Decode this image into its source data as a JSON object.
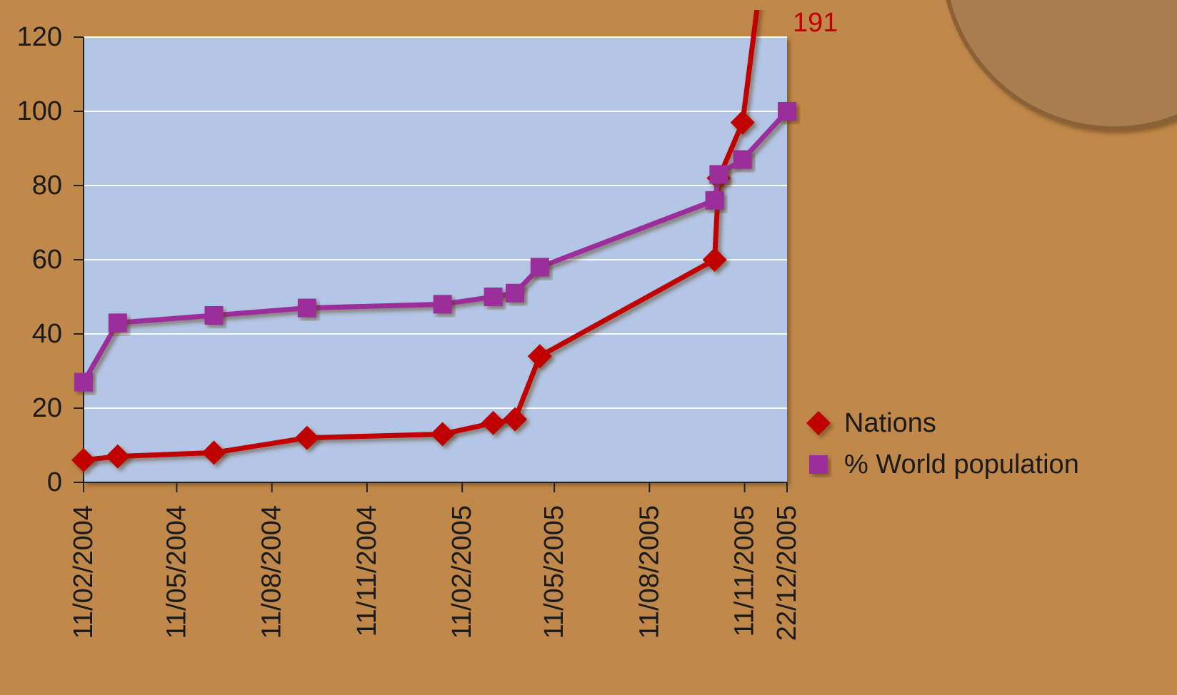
{
  "chart_data": {
    "type": "line",
    "x": [
      "11/02/2004",
      "15/03/2004",
      "16/06/2004",
      "14/09/2004",
      "23/01/2005",
      "13/03/2005",
      "03/04/2005",
      "27/04/2005",
      "13/10/2005",
      "17/10/2005",
      "09/11/2005",
      "22/12/2005"
    ],
    "series": [
      {
        "name": "Nations",
        "color": "#c00000",
        "marker": "diamond",
        "values": [
          6,
          7,
          8,
          12,
          13,
          16,
          17,
          34,
          60,
          82,
          97,
          191
        ]
      },
      {
        "name": "% World population",
        "color": "#9c2e9c",
        "marker": "square",
        "values": [
          27,
          43,
          45,
          47,
          48,
          50,
          51,
          58,
          76,
          83,
          87,
          100
        ]
      }
    ],
    "xlim": [
      "11/02/2004",
      "22/12/2005"
    ],
    "xticks": [
      "11/02/2004",
      "11/05/2004",
      "11/08/2004",
      "11/11/2004",
      "11/02/2005",
      "11/05/2005",
      "11/08/2005",
      "11/11/2005",
      "22/12/2005"
    ],
    "ylim": [
      0,
      120
    ],
    "yticks": [
      0,
      20,
      40,
      60,
      80,
      100,
      120
    ],
    "grid": true,
    "legend": "right"
  }
}
